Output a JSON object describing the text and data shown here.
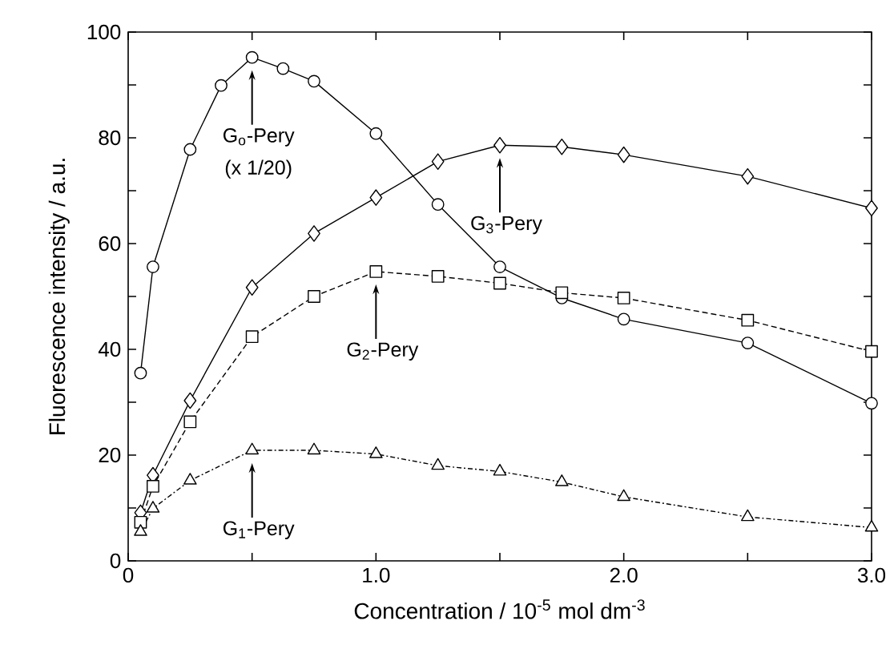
{
  "chart_data": {
    "type": "line",
    "xlabel": "Concentration / 10$^{-5}$ mol dm$^{-3}$",
    "ylabel": "Fluorescence intensity / a.u.",
    "x": [
      0.05,
      0.1,
      0.25,
      0.375,
      0.5,
      0.625,
      0.75,
      1.0,
      1.25,
      1.5,
      1.75,
      2.0,
      2.5,
      3.0
    ],
    "series": [
      {
        "color": "#000000",
        "marker": "circle",
        "line_style": "solid",
        "values": [
          35.5,
          55.6,
          77.8,
          89.9,
          95.2,
          93.1,
          90.7,
          80.8,
          67.4,
          55.6,
          49.7,
          45.7,
          41.2,
          29.8
        ]
      },
      {
        "color": "#000000",
        "marker": "diamond",
        "line_style": "solid",
        "x": [
          0.05,
          0.1,
          0.25,
          0.5,
          0.75,
          1.0,
          1.25,
          1.5,
          1.75,
          2.0,
          2.5,
          3.0
        ],
        "values": [
          9.1,
          16.2,
          30.3,
          51.7,
          61.9,
          68.7,
          75.5,
          78.6,
          78.3,
          76.8,
          72.7,
          66.7
        ]
      },
      {
        "color": "#000000",
        "marker": "square",
        "line_style": "dashed",
        "x": [
          0.05,
          0.1,
          0.25,
          0.5,
          0.75,
          1.0,
          1.25,
          1.5,
          1.75,
          2.0,
          2.5,
          3.0
        ],
        "values": [
          7.3,
          14.1,
          26.3,
          42.4,
          50.0,
          54.7,
          53.8,
          52.5,
          50.7,
          49.7,
          45.5,
          39.6
        ]
      },
      {
        "color": "#000000",
        "marker": "triangle",
        "line_style": "dotted",
        "x": [
          0.05,
          0.1,
          0.25,
          0.5,
          0.75,
          1.0,
          1.25,
          1.5,
          1.75,
          2.0,
          2.5,
          3.0
        ],
        "values": [
          5.5,
          9.9,
          15.2,
          20.9,
          20.9,
          20.2,
          18.0,
          16.9,
          14.9,
          12.1,
          8.3,
          6.3
        ]
      }
    ],
    "xlim": [
      0,
      3.0
    ],
    "xticks": [
      0,
      {
        "value": 0.5,
        "label": null
      },
      {
        "value": 1.0,
        "label": "1.0"
      },
      {
        "value": 1.5,
        "label": null
      },
      {
        "value": 2.0,
        "label": "2.0"
      },
      {
        "value": 2.5,
        "label": null
      },
      {
        "value": 3.0,
        "label": "3.0"
      }
    ],
    "ylim": [
      0,
      100
    ],
    "yticks": [
      0,
      {
        "value": 10,
        "label": null
      },
      20,
      {
        "value": 30,
        "label": null
      },
      40,
      {
        "value": 50,
        "label": null
      },
      60,
      {
        "value": 70,
        "label": null
      },
      80,
      {
        "value": 90,
        "label": null
      },
      100
    ],
    "annotations": [
      "G$_{o}$-Pery",
      "G$_{3}$-Pery",
      "G$_{2}$-Pery",
      "G$_{1}$-Pery",
      "(x 1/20)"
    ]
  }
}
